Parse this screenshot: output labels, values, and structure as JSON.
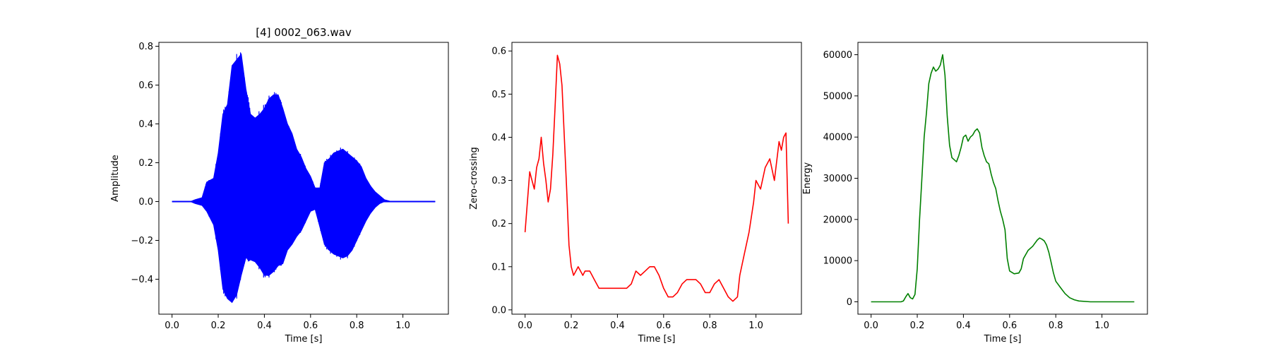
{
  "chart_data": [
    {
      "type": "line",
      "title": "[4] 0002_063.wav",
      "xlabel": "Time [s]",
      "ylabel": "Amplitude",
      "color": "#0000ff",
      "style": "waveform",
      "xlim": [
        -0.057,
        1.197
      ],
      "ylim": [
        -0.58,
        0.82
      ],
      "xticks": [
        0.0,
        0.2,
        0.4,
        0.6,
        0.8,
        1.0
      ],
      "xtick_labels": [
        "0.0",
        "0.2",
        "0.4",
        "0.6",
        "0.8",
        "1.0"
      ],
      "yticks": [
        -0.4,
        -0.2,
        0.0,
        0.2,
        0.4,
        0.6,
        0.8
      ],
      "ytick_labels": [
        "−0.4",
        "−0.2",
        "0.0",
        "0.2",
        "0.4",
        "0.6",
        "0.8"
      ],
      "series": [
        {
          "x": [
            0.0,
            0.08,
            0.1,
            0.13,
            0.15,
            0.18,
            0.2,
            0.22,
            0.24,
            0.26,
            0.28,
            0.3,
            0.32,
            0.34,
            0.36,
            0.38,
            0.4,
            0.42,
            0.44,
            0.46,
            0.48,
            0.5,
            0.52,
            0.54,
            0.56,
            0.58,
            0.6,
            0.62,
            0.64,
            0.66,
            0.68,
            0.7,
            0.72,
            0.74,
            0.76,
            0.78,
            0.8,
            0.82,
            0.84,
            0.86,
            0.88,
            0.9,
            0.92,
            0.95,
            1.0,
            1.14
          ],
          "upper": [
            0.0,
            0.0,
            0.01,
            0.02,
            0.1,
            0.12,
            0.25,
            0.45,
            0.5,
            0.7,
            0.73,
            0.76,
            0.58,
            0.45,
            0.43,
            0.45,
            0.48,
            0.53,
            0.55,
            0.55,
            0.48,
            0.4,
            0.35,
            0.27,
            0.23,
            0.17,
            0.13,
            0.07,
            0.07,
            0.2,
            0.22,
            0.25,
            0.26,
            0.27,
            0.25,
            0.23,
            0.21,
            0.18,
            0.12,
            0.08,
            0.05,
            0.03,
            0.01,
            0.0,
            0.0,
            0.0
          ],
          "lower": [
            0.0,
            0.0,
            -0.01,
            -0.02,
            -0.05,
            -0.12,
            -0.25,
            -0.45,
            -0.5,
            -0.52,
            -0.48,
            -0.38,
            -0.29,
            -0.3,
            -0.31,
            -0.34,
            -0.38,
            -0.38,
            -0.36,
            -0.33,
            -0.32,
            -0.25,
            -0.22,
            -0.18,
            -0.15,
            -0.1,
            -0.05,
            -0.04,
            -0.13,
            -0.22,
            -0.25,
            -0.27,
            -0.28,
            -0.29,
            -0.28,
            -0.25,
            -0.2,
            -0.15,
            -0.1,
            -0.06,
            -0.03,
            -0.01,
            0.0,
            0.0,
            0.0,
            0.0
          ]
        }
      ]
    },
    {
      "type": "line",
      "xlabel": "Time [s]",
      "ylabel": "Zero-crossing",
      "color": "#ff0000",
      "xlim": [
        -0.057,
        1.197
      ],
      "ylim": [
        -0.01,
        0.62
      ],
      "xticks": [
        0.0,
        0.2,
        0.4,
        0.6,
        0.8,
        1.0
      ],
      "xtick_labels": [
        "0.0",
        "0.2",
        "0.4",
        "0.6",
        "0.8",
        "1.0"
      ],
      "yticks": [
        0.0,
        0.1,
        0.2,
        0.3,
        0.4,
        0.5,
        0.6
      ],
      "ytick_labels": [
        "0.0",
        "0.1",
        "0.2",
        "0.3",
        "0.4",
        "0.5",
        "0.6"
      ],
      "series": [
        {
          "x": [
            0.0,
            0.01,
            0.02,
            0.03,
            0.04,
            0.05,
            0.06,
            0.07,
            0.08,
            0.09,
            0.1,
            0.11,
            0.12,
            0.13,
            0.14,
            0.15,
            0.16,
            0.17,
            0.18,
            0.19,
            0.2,
            0.21,
            0.22,
            0.23,
            0.24,
            0.25,
            0.26,
            0.27,
            0.28,
            0.29,
            0.3,
            0.32,
            0.34,
            0.36,
            0.4,
            0.44,
            0.46,
            0.48,
            0.5,
            0.52,
            0.54,
            0.56,
            0.58,
            0.6,
            0.62,
            0.64,
            0.66,
            0.68,
            0.7,
            0.72,
            0.74,
            0.76,
            0.78,
            0.8,
            0.82,
            0.84,
            0.86,
            0.88,
            0.9,
            0.92,
            0.93,
            0.95,
            0.97,
            0.99,
            1.0,
            1.02,
            1.04,
            1.06,
            1.08,
            1.1,
            1.11,
            1.12,
            1.13,
            1.14
          ],
          "y": [
            0.18,
            0.25,
            0.32,
            0.3,
            0.28,
            0.33,
            0.35,
            0.4,
            0.34,
            0.3,
            0.25,
            0.28,
            0.36,
            0.47,
            0.59,
            0.57,
            0.52,
            0.4,
            0.28,
            0.15,
            0.1,
            0.08,
            0.09,
            0.1,
            0.09,
            0.08,
            0.09,
            0.09,
            0.09,
            0.08,
            0.07,
            0.05,
            0.05,
            0.05,
            0.05,
            0.05,
            0.06,
            0.09,
            0.08,
            0.09,
            0.1,
            0.1,
            0.08,
            0.05,
            0.03,
            0.03,
            0.04,
            0.06,
            0.07,
            0.07,
            0.07,
            0.06,
            0.04,
            0.04,
            0.06,
            0.07,
            0.05,
            0.03,
            0.02,
            0.03,
            0.08,
            0.13,
            0.18,
            0.25,
            0.3,
            0.28,
            0.33,
            0.35,
            0.3,
            0.39,
            0.37,
            0.4,
            0.41,
            0.2
          ]
        }
      ]
    },
    {
      "type": "line",
      "xlabel": "Time [s]",
      "ylabel": "Energy",
      "color": "#008000",
      "xlim": [
        -0.057,
        1.197
      ],
      "ylim": [
        -3000,
        63000
      ],
      "xticks": [
        0.0,
        0.2,
        0.4,
        0.6,
        0.8,
        1.0
      ],
      "xtick_labels": [
        "0.0",
        "0.2",
        "0.4",
        "0.6",
        "0.8",
        "1.0"
      ],
      "yticks": [
        0,
        10000,
        20000,
        30000,
        40000,
        50000,
        60000
      ],
      "ytick_labels": [
        "0",
        "10000",
        "20000",
        "30000",
        "40000",
        "50000",
        "60000"
      ],
      "series": [
        {
          "x": [
            0.0,
            0.13,
            0.14,
            0.15,
            0.16,
            0.17,
            0.18,
            0.19,
            0.2,
            0.21,
            0.22,
            0.23,
            0.24,
            0.25,
            0.26,
            0.27,
            0.28,
            0.29,
            0.3,
            0.31,
            0.32,
            0.33,
            0.34,
            0.35,
            0.36,
            0.37,
            0.38,
            0.39,
            0.4,
            0.41,
            0.42,
            0.43,
            0.44,
            0.45,
            0.46,
            0.47,
            0.48,
            0.49,
            0.5,
            0.51,
            0.52,
            0.53,
            0.54,
            0.55,
            0.56,
            0.57,
            0.58,
            0.59,
            0.6,
            0.62,
            0.64,
            0.65,
            0.66,
            0.68,
            0.7,
            0.72,
            0.73,
            0.74,
            0.75,
            0.76,
            0.77,
            0.78,
            0.79,
            0.8,
            0.82,
            0.84,
            0.86,
            0.88,
            0.9,
            0.95,
            1.0,
            1.14
          ],
          "y": [
            0,
            0,
            200,
            1200,
            2000,
            1000,
            700,
            1800,
            8000,
            20000,
            30000,
            40000,
            46000,
            53000,
            55500,
            57000,
            56000,
            56500,
            57500,
            60000,
            55000,
            45000,
            38000,
            35000,
            34500,
            34000,
            35500,
            37500,
            40000,
            40500,
            39000,
            40000,
            40500,
            41500,
            42000,
            41000,
            37500,
            35500,
            34000,
            33500,
            31000,
            29000,
            27500,
            24500,
            22000,
            20000,
            17500,
            10500,
            7500,
            6800,
            7000,
            8000,
            10500,
            12500,
            13500,
            15000,
            15500,
            15200,
            14800,
            13800,
            12000,
            9500,
            7000,
            5000,
            3500,
            2000,
            1000,
            500,
            200,
            0,
            0,
            0
          ]
        }
      ]
    }
  ]
}
